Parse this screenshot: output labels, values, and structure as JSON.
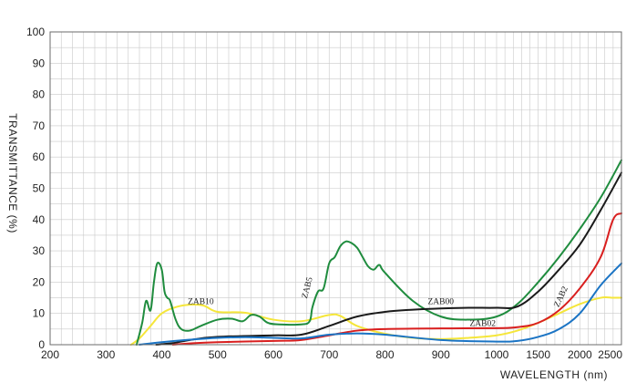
{
  "chart_data": {
    "type": "line",
    "xlabel": "WAVELENGTH (nm)",
    "ylabel": "TRANSMITTANCE  (%)",
    "x_ticks": [
      "200",
      "300",
      "400",
      "500",
      "600",
      "700",
      "800",
      "900",
      "1000",
      "1500",
      "2000",
      "2500"
    ],
    "x_axis_note": "non-uniform wavelength axis: linear 200–1000 nm in 100 nm steps, then 500 nm steps to 2500 nm",
    "y_ticks": [
      "0",
      "10",
      "20",
      "30",
      "40",
      "50",
      "60",
      "70",
      "80",
      "90",
      "100"
    ],
    "ylim": [
      0,
      100
    ],
    "grid": true,
    "series": [
      {
        "name": "ZAB10",
        "color": "#f5e63a",
        "x": [
          345,
          360,
          380,
          400,
          425,
          450,
          475,
          500,
          550,
          600,
          650,
          700,
          720,
          750,
          800,
          850,
          900,
          950,
          1000,
          1250,
          1500,
          1750,
          2000,
          2250,
          2400,
          2500
        ],
        "y": [
          0,
          2,
          6,
          10,
          12,
          12.8,
          12.5,
          10.5,
          10.2,
          8,
          7.5,
          9.5,
          9.2,
          6,
          3.5,
          2.2,
          1.8,
          2.2,
          3,
          4.5,
          7,
          10,
          13,
          15,
          15,
          15
        ]
      },
      {
        "name": "ZAB5",
        "color": "#1f8c3e",
        "x": [
          355,
          365,
          372,
          380,
          386,
          392,
          400,
          405,
          410,
          415,
          425,
          435,
          450,
          470,
          500,
          525,
          545,
          560,
          575,
          590,
          610,
          650,
          665,
          670,
          680,
          690,
          700,
          710,
          720,
          730,
          740,
          750,
          760,
          770,
          780,
          790,
          800,
          850,
          900,
          950,
          1000,
          1250,
          1500,
          1750,
          2000,
          2250,
          2500
        ],
        "y": [
          0,
          7,
          14,
          11,
          20,
          26,
          24,
          17,
          15,
          14,
          8,
          5,
          4.5,
          6,
          8,
          8.3,
          7.5,
          9.5,
          9,
          7,
          6.5,
          6.5,
          7.5,
          12,
          17,
          18,
          26,
          28,
          31.5,
          33,
          32.5,
          31,
          28,
          25,
          24,
          25.5,
          23,
          14,
          9,
          8,
          9,
          13,
          20,
          28,
          37,
          47,
          59
        ]
      },
      {
        "name": "ZAB00",
        "color": "#1a1a1a",
        "x": [
          390,
          420,
          450,
          500,
          600,
          650,
          700,
          750,
          800,
          850,
          900,
          950,
          1000,
          1250,
          1500,
          1750,
          2000,
          2250,
          2500
        ],
        "y": [
          0,
          0.5,
          1.5,
          2.5,
          3,
          3.2,
          6,
          9,
          10.5,
          11.2,
          11.6,
          11.8,
          11.8,
          12.2,
          17,
          24,
          32,
          43,
          55
        ]
      },
      {
        "name": "ZAB02",
        "color": "#d91f1f",
        "x": [
          420,
          450,
          500,
          600,
          650,
          700,
          750,
          800,
          900,
          1000,
          1250,
          1500,
          1750,
          2000,
          2250,
          2400,
          2500
        ],
        "y": [
          0,
          0.4,
          0.8,
          1.2,
          1.5,
          3,
          4.5,
          5,
          5.2,
          5.3,
          5.6,
          7,
          11,
          18,
          28,
          40,
          42
        ]
      },
      {
        "name": "ZAB2",
        "color": "#1b74c4",
        "x": [
          360,
          400,
          450,
          500,
          550,
          600,
          650,
          700,
          750,
          800,
          900,
          1000,
          1250,
          1500,
          1750,
          2000,
          2250,
          2500
        ],
        "y": [
          0,
          0.8,
          1.6,
          2.2,
          2.4,
          2.2,
          2,
          3.2,
          3.6,
          3.2,
          1.5,
          1,
          1.2,
          2.5,
          5,
          10,
          19,
          26
        ]
      }
    ],
    "annotations": [
      {
        "text": "ZAB10",
        "series": "ZAB10",
        "x": 470,
        "y": 13,
        "rotate": 0
      },
      {
        "text": "ZAB5",
        "series": "ZAB5",
        "x": 665,
        "y": 18,
        "rotate": -75
      },
      {
        "text": "ZAB00",
        "series": "ZAB00",
        "x": 900,
        "y": 13,
        "rotate": 0
      },
      {
        "text": "ZAB02",
        "series": "ZAB02",
        "x": 975,
        "y": 6,
        "rotate": 0
      },
      {
        "text": "ZAB2",
        "series": "ZAB2",
        "x": 1800,
        "y": 15,
        "rotate": -65
      }
    ]
  }
}
